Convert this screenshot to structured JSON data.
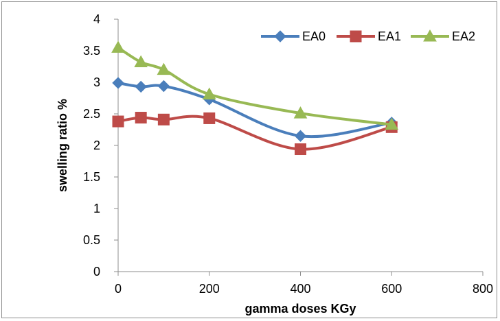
{
  "chart_data": {
    "type": "line",
    "title": "",
    "xlabel": "gamma doses KGy",
    "ylabel": "swelling ratio %",
    "xlim": [
      0,
      800
    ],
    "ylim": [
      0,
      4
    ],
    "xticks": [
      "0",
      "200",
      "400",
      "600",
      "800"
    ],
    "yticks": [
      "0",
      "0.5",
      "1",
      "1.5",
      "2",
      "2.5",
      "3",
      "3.5",
      "4"
    ],
    "grid": false,
    "smooth": true,
    "legend_position": "top-right",
    "x": [
      0,
      50,
      100,
      200,
      400,
      600
    ],
    "series": [
      {
        "name": "EA0",
        "color": "#4a7ebb",
        "marker": "diamond",
        "values": [
          2.99,
          2.93,
          2.94,
          2.73,
          2.15,
          2.36
        ]
      },
      {
        "name": "EA1",
        "color": "#be4b48",
        "marker": "square",
        "values": [
          2.38,
          2.44,
          2.41,
          2.43,
          1.94,
          2.29
        ]
      },
      {
        "name": "EA2",
        "color": "#98b954",
        "marker": "triangle",
        "values": [
          3.55,
          3.32,
          3.2,
          2.81,
          2.51,
          2.33
        ]
      }
    ]
  }
}
